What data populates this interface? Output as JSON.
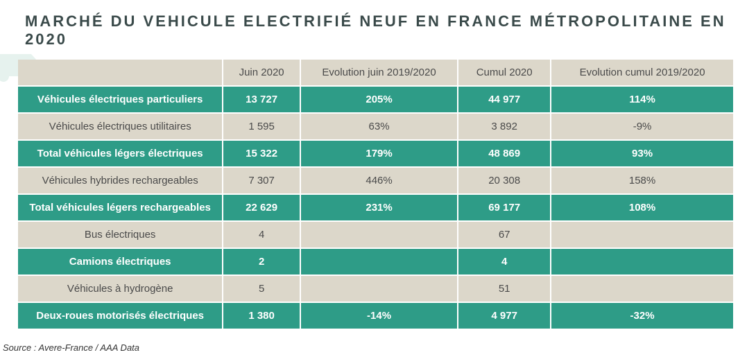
{
  "title": "MARCHÉ DU VEHICULE ELECTRIFIÉ NEUF EN FRANCE MÉTROPOLITAINE EN 2020",
  "source": "Source : Avere-France / AAA Data",
  "colors": {
    "green": "#2e9c87",
    "beige": "#dcd7ca",
    "title_text": "#3a4a4a",
    "beige_text": "#4a4a4a",
    "green_text": "#ffffff",
    "car_deco": "#cfe6de"
  },
  "columns": [
    "Juin 2020",
    "Evolution juin 2019/2020",
    "Cumul 2020",
    "Evolution cumul 2019/2020"
  ],
  "rows": [
    {
      "style": "green",
      "label": "Véhicules électriques particuliers",
      "values": [
        "13 727",
        "205%",
        "44 977",
        "114%"
      ]
    },
    {
      "style": "beige",
      "label": "Véhicules électriques utilitaires",
      "values": [
        "1 595",
        "63%",
        "3 892",
        "-9%"
      ]
    },
    {
      "style": "green",
      "label": "Total véhicules légers électriques",
      "values": [
        "15 322",
        "179%",
        "48 869",
        "93%"
      ]
    },
    {
      "style": "beige",
      "label": "Véhicules hybrides rechargeables",
      "values": [
        "7 307",
        "446%",
        "20 308",
        "158%"
      ]
    },
    {
      "style": "green",
      "label": "Total véhicules légers rechargeables",
      "values": [
        "22 629",
        "231%",
        "69 177",
        "108%"
      ]
    },
    {
      "style": "beige",
      "label": "Bus électriques",
      "values": [
        "4",
        "",
        "67",
        ""
      ]
    },
    {
      "style": "green",
      "label": "Camions électriques",
      "values": [
        "2",
        "",
        "4",
        ""
      ]
    },
    {
      "style": "beige",
      "label": "Véhicules à hydrogène",
      "values": [
        "5",
        "",
        "51",
        ""
      ]
    },
    {
      "style": "green",
      "label": "Deux-roues motorisés électriques",
      "values": [
        "1 380",
        "-14%",
        "4 977",
        "-32%"
      ]
    }
  ]
}
